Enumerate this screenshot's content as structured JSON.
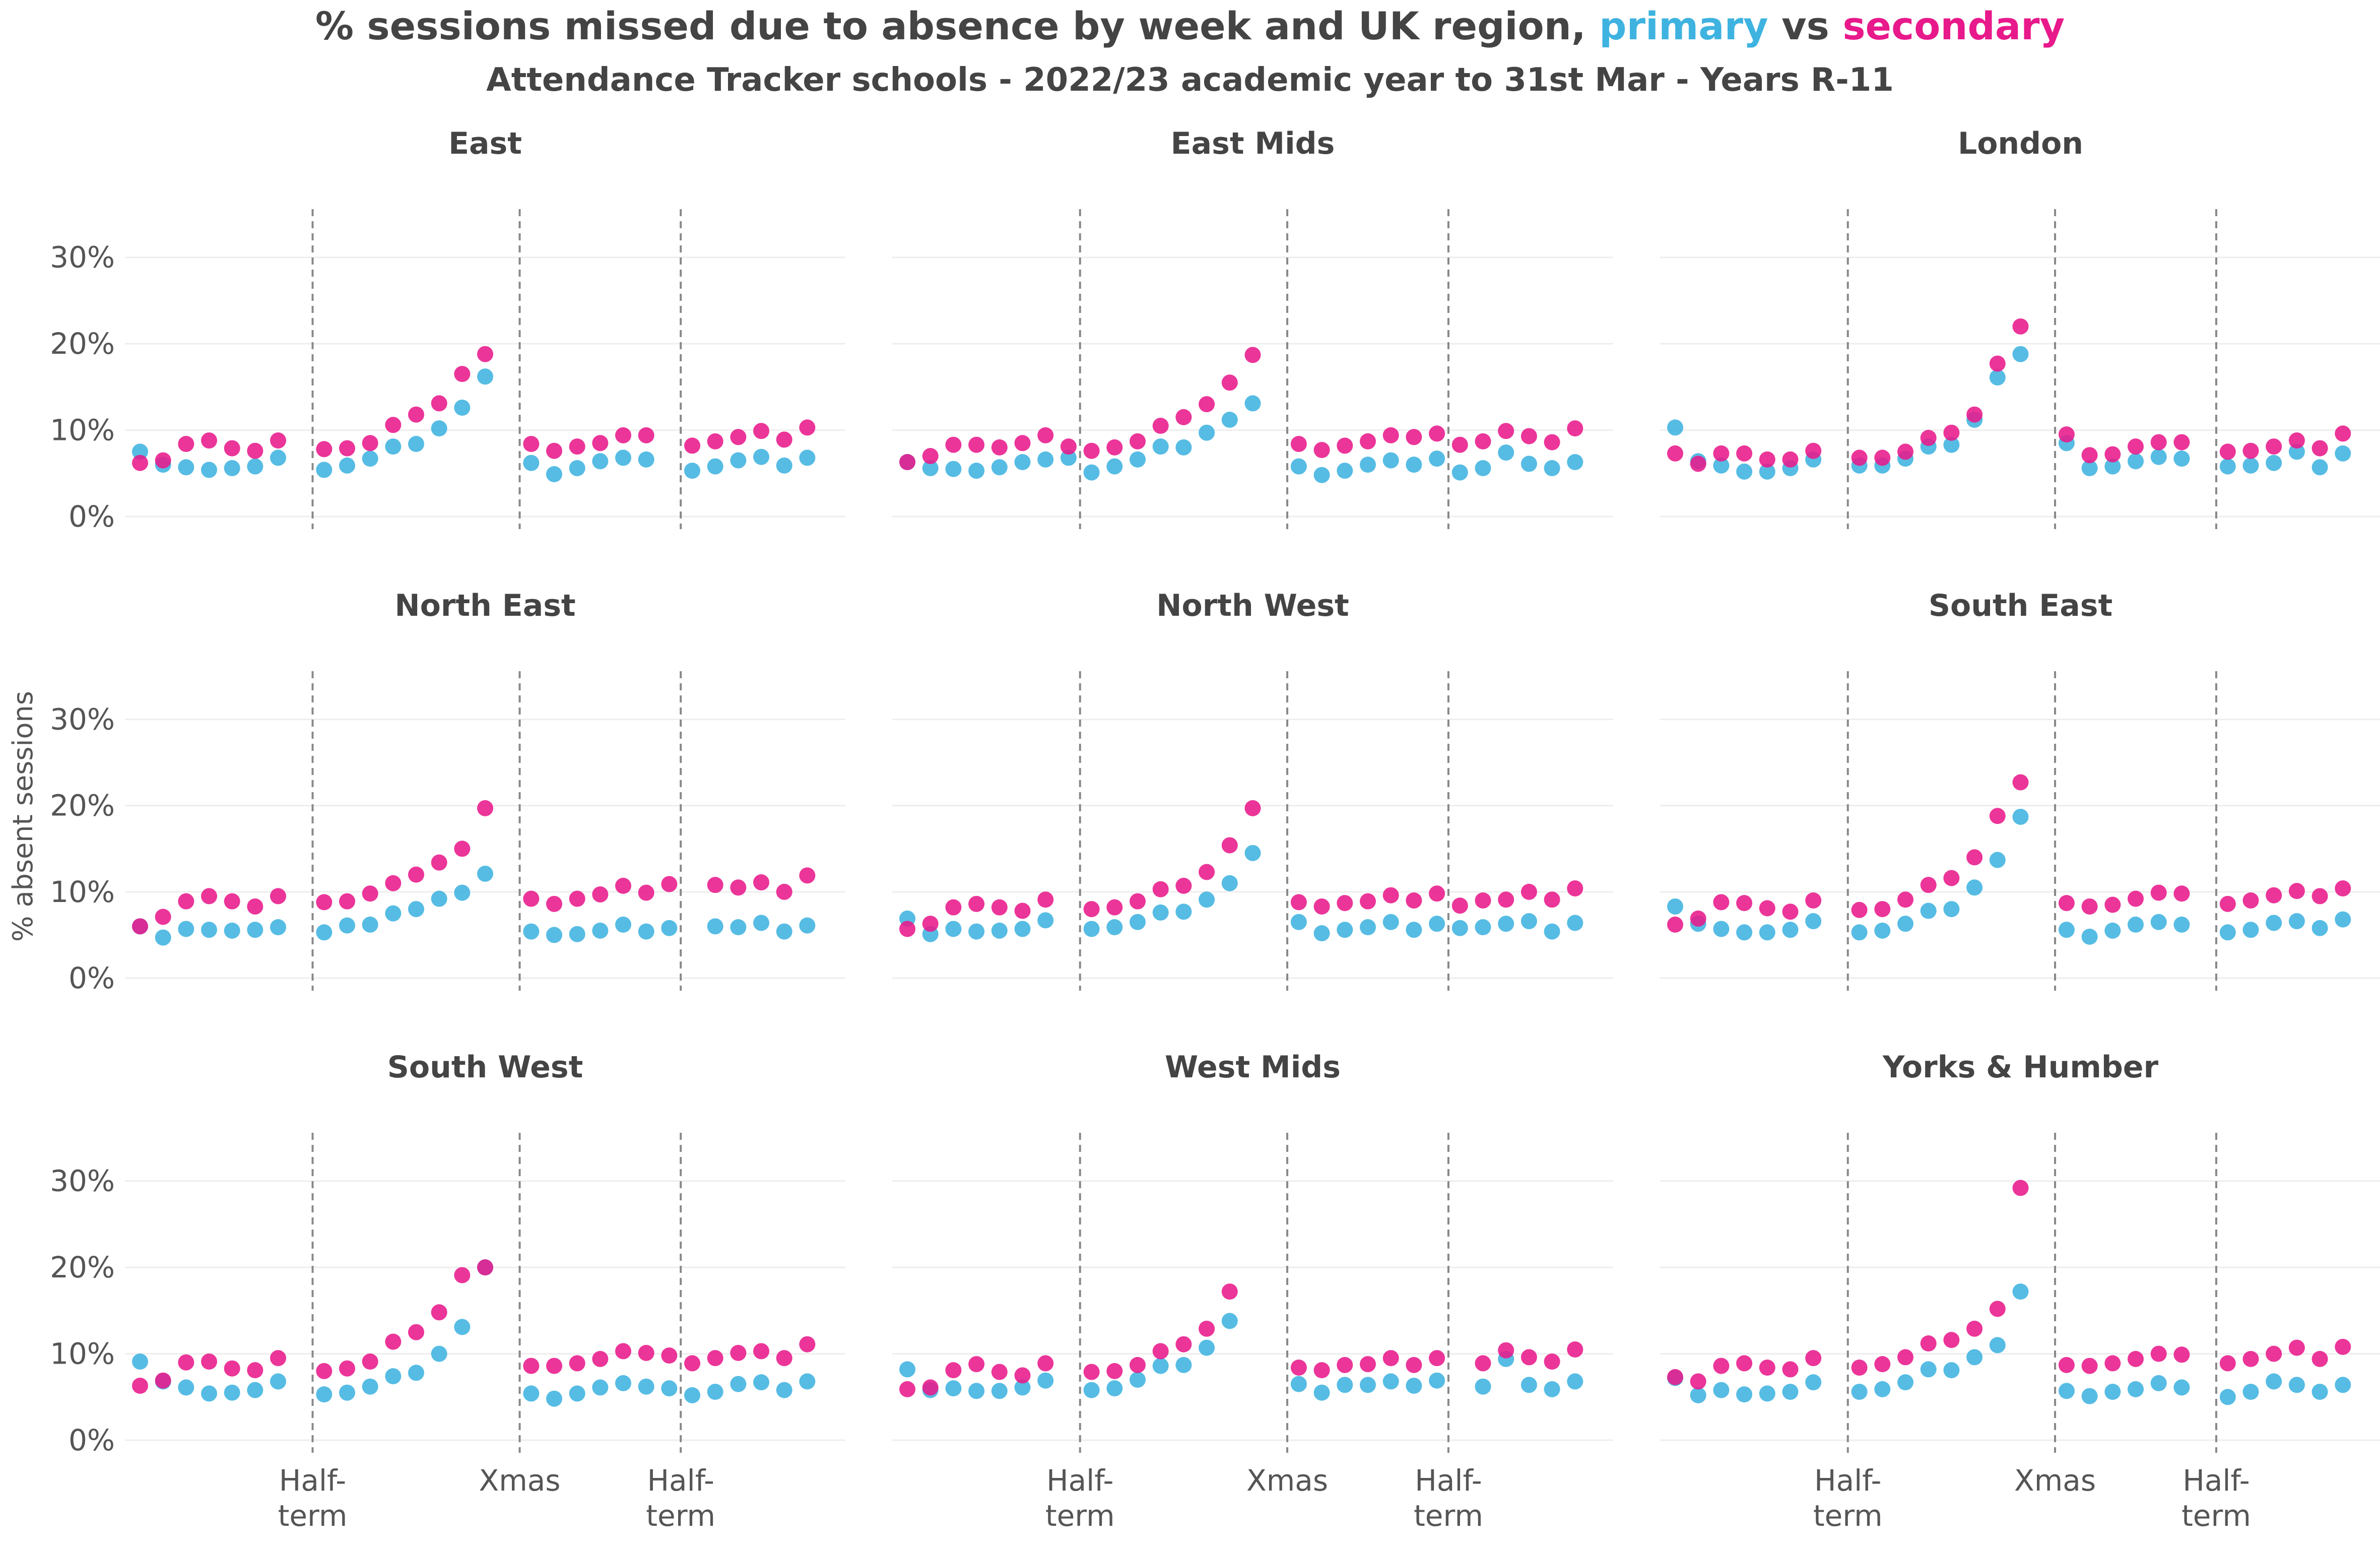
{
  "colors": {
    "primary": "#3fb3e0",
    "secondary": "#e8198b",
    "text": "#444444",
    "vline": "#888888",
    "grid": "#eeeeee"
  },
  "chart_data": {
    "type": "scatter",
    "title_parts": [
      "% sessions missed due to absence by week and UK region, ",
      "primary",
      " vs ",
      "secondary"
    ],
    "subtitle": "Attendance Tracker schools - 2022/23 academic year to 31st Mar - Years R-11",
    "ylabel": "% absent sessions",
    "ylim": [
      0,
      35
    ],
    "y_ticks": [
      0,
      10,
      20,
      30
    ],
    "y_tick_labels": [
      "0%",
      "10%",
      "20%",
      "30%"
    ],
    "grid": true,
    "x_events": [
      {
        "week": 7.5,
        "label": [
          "Half-",
          "term"
        ]
      },
      {
        "week": 16.5,
        "label": [
          "Xmas"
        ]
      },
      {
        "week": 23.5,
        "label": [
          "Half-",
          "term"
        ]
      }
    ],
    "series_names": [
      "primary",
      "secondary"
    ],
    "panels": [
      {
        "name": "East",
        "x": [
          0,
          1,
          2,
          3,
          4,
          5,
          6,
          8,
          9,
          10,
          11,
          12,
          13,
          14,
          15,
          17,
          18,
          19,
          20,
          21,
          22,
          23,
          24,
          25,
          26,
          27,
          28,
          29,
          30
        ],
        "primary": [
          7.5,
          6.0,
          5.7,
          5.4,
          5.6,
          5.8,
          6.8,
          5.4,
          5.9,
          6.7,
          8.1,
          8.4,
          10.2,
          12.6,
          16.2,
          6.2,
          4.9,
          5.6,
          6.4,
          6.8,
          6.6,
          null,
          5.3,
          5.8,
          6.5,
          6.9,
          5.9,
          6.8,
          null
        ],
        "secondary": [
          6.2,
          6.5,
          8.4,
          8.8,
          7.9,
          7.6,
          8.8,
          7.8,
          7.9,
          8.5,
          10.6,
          11.8,
          13.1,
          16.5,
          18.8,
          8.4,
          7.6,
          8.1,
          8.5,
          9.4,
          9.4,
          null,
          8.2,
          8.7,
          9.2,
          9.9,
          8.9,
          10.3,
          null
        ]
      },
      {
        "name": "East Mids",
        "x": [
          0,
          1,
          2,
          3,
          4,
          5,
          6,
          7,
          8,
          9,
          10,
          11,
          12,
          13,
          14,
          15,
          17,
          18,
          19,
          20,
          21,
          22,
          23,
          24,
          25,
          26,
          27,
          28,
          29,
          30
        ],
        "primary": [
          6.3,
          5.6,
          5.5,
          5.3,
          5.7,
          6.3,
          6.6,
          6.8,
          5.1,
          5.8,
          6.6,
          8.1,
          8.0,
          9.7,
          11.2,
          13.1,
          5.8,
          4.8,
          5.3,
          6.0,
          6.5,
          6.0,
          6.7,
          5.1,
          5.6,
          7.4,
          6.1,
          5.6,
          6.3,
          null
        ],
        "secondary": [
          6.3,
          7.0,
          8.3,
          8.3,
          8.0,
          8.5,
          9.4,
          8.1,
          7.6,
          8.0,
          8.7,
          10.5,
          11.5,
          13.0,
          15.5,
          18.7,
          8.4,
          7.7,
          8.2,
          8.7,
          9.4,
          9.2,
          9.6,
          8.3,
          8.7,
          9.9,
          9.3,
          8.6,
          10.2,
          null
        ]
      },
      {
        "name": "London",
        "x": [
          0,
          1,
          2,
          3,
          4,
          5,
          6,
          8,
          9,
          10,
          11,
          12,
          13,
          14,
          15,
          17,
          18,
          19,
          20,
          21,
          22,
          24,
          25,
          26,
          27,
          28,
          29
        ],
        "primary": [
          10.3,
          6.4,
          5.9,
          5.2,
          5.2,
          5.6,
          6.6,
          5.9,
          5.9,
          6.7,
          8.1,
          8.3,
          11.2,
          16.1,
          18.8,
          8.5,
          5.6,
          5.8,
          6.4,
          6.9,
          6.7,
          5.8,
          5.9,
          6.2,
          7.5,
          5.7,
          7.3
        ],
        "secondary": [
          7.3,
          6.1,
          7.3,
          7.3,
          6.6,
          6.6,
          7.6,
          6.8,
          6.8,
          7.5,
          9.1,
          9.7,
          11.8,
          17.7,
          22.0,
          9.5,
          7.1,
          7.2,
          8.1,
          8.6,
          8.6,
          7.5,
          7.6,
          8.1,
          8.8,
          7.9,
          9.6
        ]
      },
      {
        "name": "North East",
        "x": [
          0,
          1,
          2,
          3,
          4,
          5,
          6,
          8,
          9,
          10,
          11,
          12,
          13,
          14,
          15,
          17,
          18,
          19,
          20,
          21,
          22,
          23,
          25,
          26,
          27,
          28,
          29,
          30
        ],
        "primary": [
          6.0,
          4.7,
          5.7,
          5.6,
          5.5,
          5.6,
          5.9,
          5.3,
          6.1,
          6.2,
          7.5,
          8.0,
          9.2,
          9.9,
          12.1,
          5.4,
          5.0,
          5.1,
          5.5,
          6.2,
          5.4,
          5.8,
          6.0,
          5.9,
          6.4,
          5.4,
          6.1,
          null
        ],
        "secondary": [
          6.0,
          7.1,
          8.9,
          9.5,
          8.9,
          8.3,
          9.5,
          8.8,
          8.9,
          9.8,
          11.0,
          12.0,
          13.4,
          15.0,
          19.7,
          9.2,
          8.6,
          9.2,
          9.7,
          10.7,
          9.9,
          10.9,
          10.8,
          10.5,
          11.1,
          10.0,
          11.9,
          null
        ]
      },
      {
        "name": "North West",
        "x": [
          0,
          1,
          2,
          3,
          4,
          5,
          6,
          8,
          9,
          10,
          11,
          12,
          13,
          14,
          15,
          17,
          18,
          19,
          20,
          21,
          22,
          23,
          24,
          25,
          26,
          27,
          28,
          29
        ],
        "primary": [
          6.9,
          5.1,
          5.7,
          5.4,
          5.5,
          5.7,
          6.7,
          5.7,
          5.9,
          6.5,
          7.6,
          7.7,
          9.1,
          11.0,
          14.5,
          6.5,
          5.2,
          5.6,
          5.9,
          6.5,
          5.6,
          6.3,
          5.8,
          5.9,
          6.3,
          6.6,
          5.4,
          6.4
        ],
        "secondary": [
          5.7,
          6.3,
          8.2,
          8.6,
          8.2,
          7.8,
          9.1,
          8.0,
          8.2,
          8.9,
          10.3,
          10.7,
          12.3,
          15.4,
          19.7,
          8.8,
          8.3,
          8.7,
          8.9,
          9.6,
          9.0,
          9.8,
          8.4,
          9.0,
          9.1,
          10.0,
          9.1,
          10.4
        ]
      },
      {
        "name": "South East",
        "x": [
          0,
          1,
          2,
          3,
          4,
          5,
          6,
          8,
          9,
          10,
          11,
          12,
          13,
          14,
          15,
          17,
          18,
          19,
          20,
          21,
          22,
          24,
          25,
          26,
          27,
          28,
          29
        ],
        "primary": [
          8.3,
          6.3,
          5.7,
          5.3,
          5.3,
          5.6,
          6.6,
          5.3,
          5.5,
          6.3,
          7.8,
          8.0,
          10.5,
          13.7,
          18.7,
          5.6,
          4.8,
          5.5,
          6.2,
          6.5,
          6.2,
          5.3,
          5.6,
          6.4,
          6.6,
          5.8,
          6.8
        ],
        "secondary": [
          6.2,
          6.9,
          8.8,
          8.7,
          8.1,
          7.7,
          9.0,
          7.9,
          8.0,
          9.1,
          10.8,
          11.6,
          14.0,
          18.8,
          22.7,
          8.7,
          8.3,
          8.5,
          9.2,
          9.9,
          9.8,
          8.6,
          9.0,
          9.6,
          10.1,
          9.5,
          10.4
        ]
      },
      {
        "name": "South West",
        "x": [
          0,
          1,
          2,
          3,
          4,
          5,
          6,
          8,
          9,
          10,
          11,
          12,
          13,
          14,
          15,
          17,
          18,
          19,
          20,
          21,
          22,
          23,
          24,
          25,
          26,
          27,
          28,
          29
        ],
        "primary": [
          9.1,
          6.8,
          6.1,
          5.4,
          5.5,
          5.8,
          6.8,
          5.3,
          5.5,
          6.2,
          7.4,
          7.8,
          10.0,
          13.1,
          20.0,
          5.4,
          4.8,
          5.4,
          6.1,
          6.6,
          6.2,
          6.0,
          5.2,
          5.6,
          6.5,
          6.7,
          5.8,
          6.8
        ],
        "secondary": [
          6.3,
          6.9,
          9.0,
          9.1,
          8.3,
          8.1,
          9.5,
          8.0,
          8.3,
          9.1,
          11.4,
          12.5,
          14.8,
          19.1,
          20.0,
          8.6,
          8.6,
          8.9,
          9.4,
          10.3,
          10.1,
          9.8,
          8.9,
          9.5,
          10.1,
          10.3,
          9.5,
          11.1
        ]
      },
      {
        "name": "West Mids",
        "x": [
          0,
          1,
          2,
          3,
          4,
          5,
          6,
          8,
          9,
          10,
          11,
          12,
          13,
          14,
          17,
          18,
          19,
          20,
          21,
          22,
          23,
          25,
          26,
          27,
          28,
          29
        ],
        "primary": [
          8.2,
          5.8,
          6.0,
          5.7,
          5.7,
          6.1,
          6.9,
          5.8,
          6.0,
          7.0,
          8.6,
          8.7,
          10.7,
          13.8,
          6.5,
          5.5,
          6.4,
          6.4,
          6.8,
          6.3,
          6.9,
          6.2,
          9.4,
          6.4,
          5.9,
          6.8
        ],
        "secondary": [
          5.9,
          6.1,
          8.1,
          8.8,
          7.9,
          7.5,
          8.9,
          7.9,
          8.0,
          8.7,
          10.3,
          11.1,
          12.9,
          17.2,
          8.4,
          8.1,
          8.7,
          8.8,
          9.5,
          8.7,
          9.5,
          8.9,
          10.4,
          9.6,
          9.1,
          10.5
        ]
      },
      {
        "name": "Yorks & Humber",
        "x": [
          0,
          1,
          2,
          3,
          4,
          5,
          6,
          8,
          9,
          10,
          11,
          12,
          13,
          14,
          15,
          17,
          18,
          19,
          20,
          21,
          22,
          24,
          25,
          26,
          27,
          28,
          29
        ],
        "primary": [
          7.2,
          5.2,
          5.8,
          5.3,
          5.4,
          5.6,
          6.7,
          5.6,
          5.9,
          6.7,
          8.2,
          8.1,
          9.6,
          11.0,
          17.2,
          5.7,
          5.1,
          5.6,
          5.9,
          6.6,
          6.1,
          5.0,
          5.6,
          6.8,
          6.4,
          5.6,
          6.4
        ],
        "secondary": [
          7.3,
          6.8,
          8.6,
          8.9,
          8.4,
          8.2,
          9.5,
          8.4,
          8.8,
          9.6,
          11.2,
          11.6,
          12.9,
          15.2,
          29.2,
          8.7,
          8.6,
          8.9,
          9.4,
          10.0,
          9.9,
          8.9,
          9.4,
          10.0,
          10.7,
          9.4,
          10.8
        ]
      }
    ]
  }
}
